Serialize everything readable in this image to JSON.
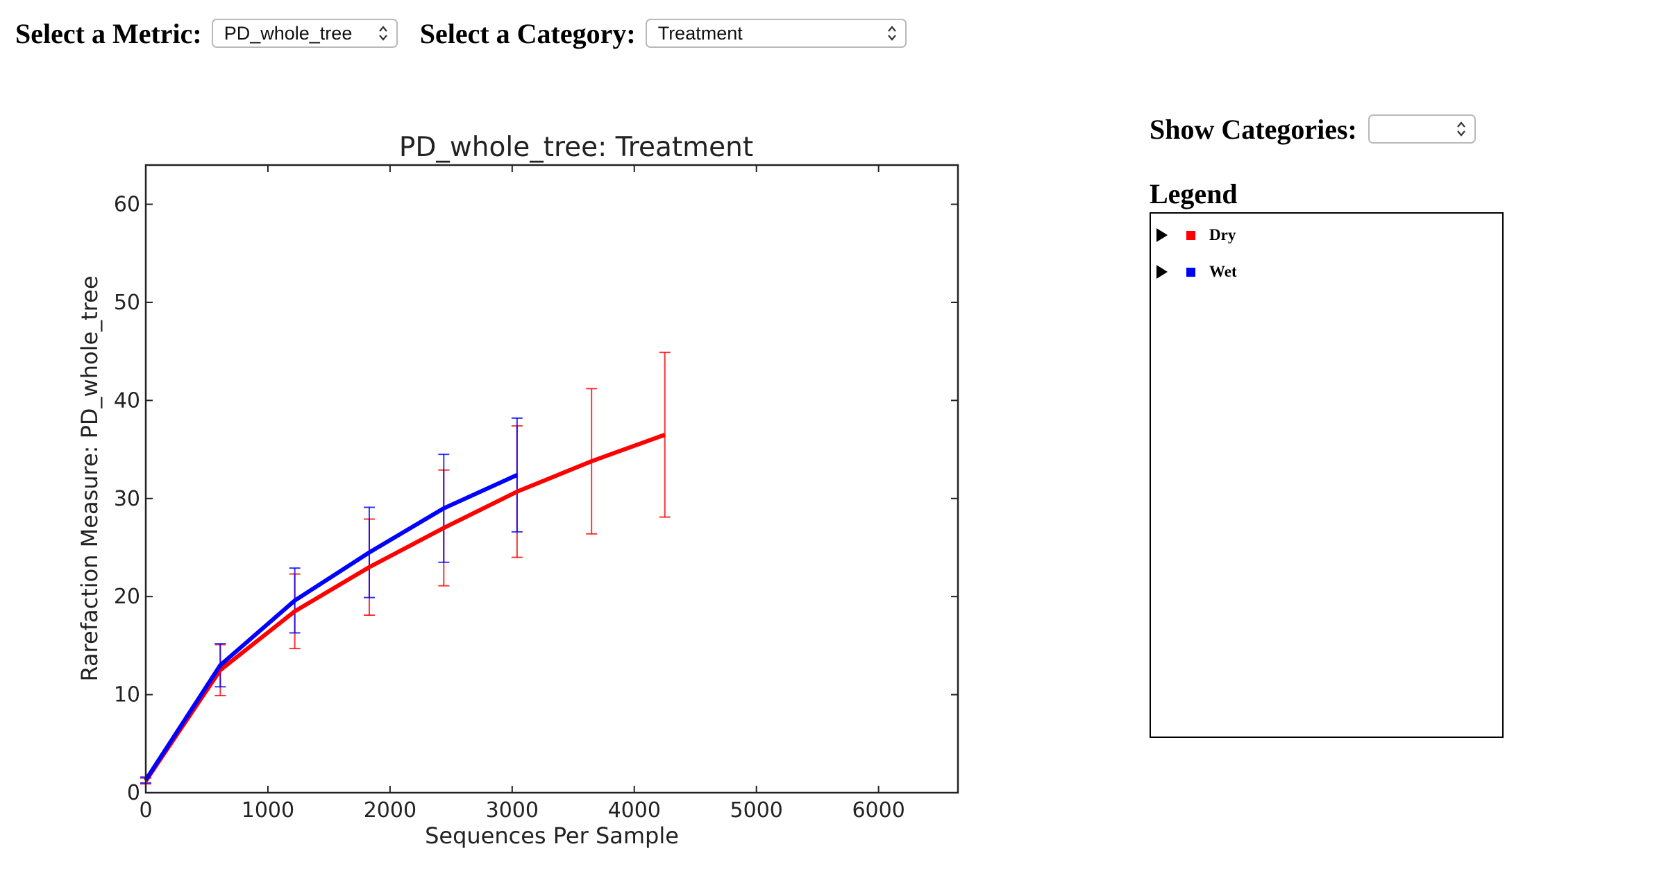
{
  "controls": {
    "metric_label": "Select a Metric:",
    "metric_value": "PD_whole_tree",
    "category_label": "Select a Category:",
    "category_value": "Treatment",
    "show_categories_label": "Show Categories:",
    "show_categories_value": ""
  },
  "legend": {
    "title": "Legend",
    "items": [
      {
        "label": "Dry",
        "color": "#ff0000"
      },
      {
        "label": "Wet",
        "color": "#0000ff"
      }
    ]
  },
  "chart_data": {
    "type": "line",
    "title": "PD_whole_tree: Treatment",
    "xlabel": "Sequences Per Sample",
    "ylabel": "Rarefaction Measure: PD_whole_tree",
    "xlim": [
      0,
      6650
    ],
    "ylim": [
      0,
      64
    ],
    "xticks": [
      0,
      1000,
      2000,
      3000,
      4000,
      5000,
      6000
    ],
    "yticks": [
      0,
      10,
      20,
      30,
      40,
      50,
      60
    ],
    "grid": false,
    "error_bars": true,
    "series": [
      {
        "name": "Dry",
        "color": "#ff0000",
        "x": [
          0,
          610,
          1220,
          1830,
          2440,
          3040,
          3650,
          4250
        ],
        "y": [
          1.2,
          12.5,
          18.5,
          23,
          27,
          30.7,
          33.8,
          36.5
        ],
        "err": [
          0.3,
          2.6,
          3.8,
          4.9,
          5.9,
          6.7,
          7.4,
          8.4
        ]
      },
      {
        "name": "Wet",
        "color": "#0000ff",
        "x": [
          0,
          610,
          1220,
          1830,
          2440,
          3040
        ],
        "y": [
          1.3,
          13,
          19.6,
          24.5,
          29,
          32.4
        ],
        "err": [
          0.3,
          2.2,
          3.3,
          4.6,
          5.5,
          5.8
        ]
      }
    ]
  }
}
